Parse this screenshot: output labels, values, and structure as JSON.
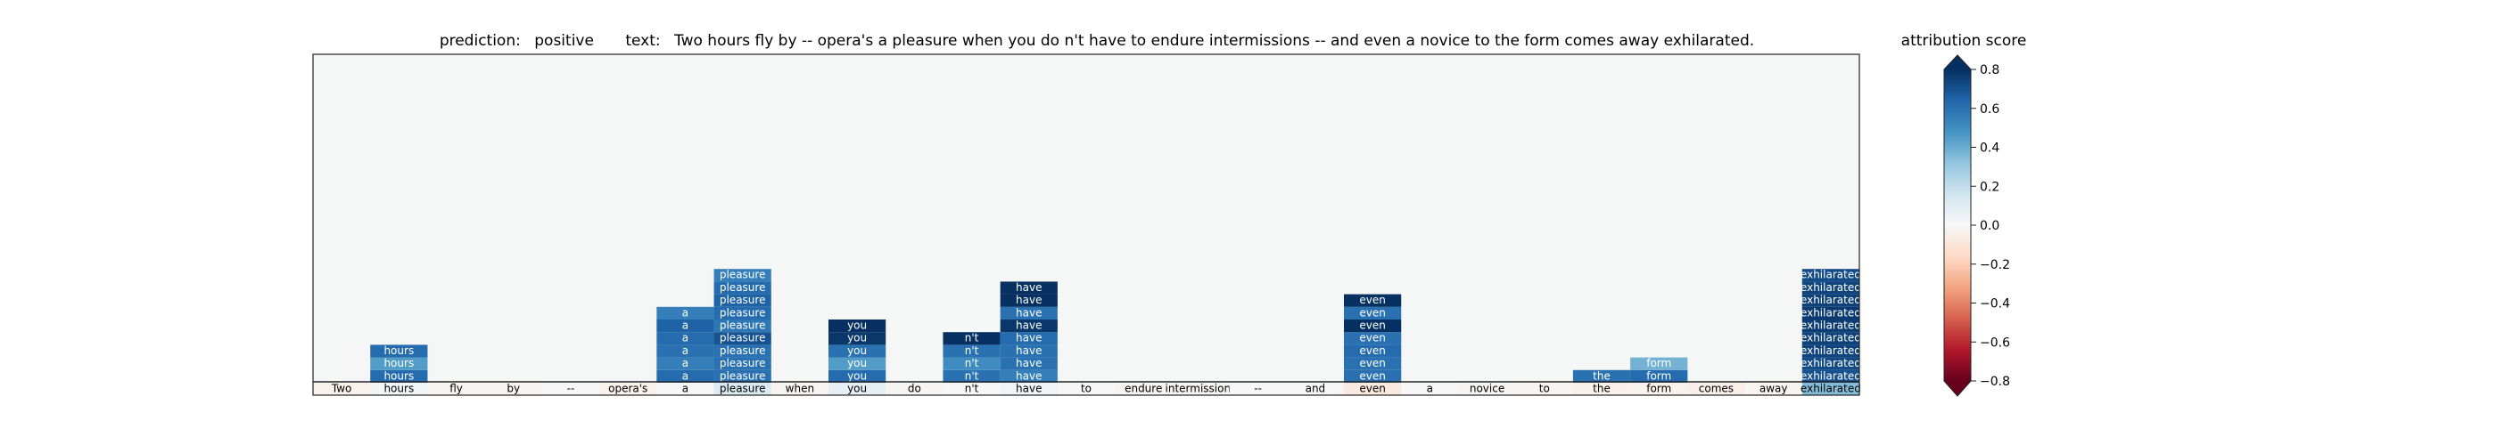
{
  "chart_data": {
    "type": "heatmap",
    "title": {
      "prediction_label": "prediction:",
      "prediction_value": "positive",
      "text_label": "text:",
      "text_value": "Two hours fly by -- opera's a pleasure when you do n't have to endure intermissions -- and even a novice to the form comes away exhilarated."
    },
    "tokens": [
      "Two",
      "hours",
      "fly",
      "by",
      "--",
      "opera's",
      "a",
      "pleasure",
      "when",
      "you",
      "do",
      "n't",
      "have",
      "to",
      "endure",
      "intermissions",
      "--",
      "and",
      "even",
      "a",
      "novice",
      "to",
      "the",
      "form",
      "comes",
      "away",
      "exhilarated"
    ],
    "baseline_scores": [
      -0.03,
      0.02,
      -0.02,
      -0.02,
      0.0,
      -0.03,
      0.0,
      0.12,
      -0.02,
      0.07,
      -0.01,
      0.0,
      0.03,
      0.0,
      -0.01,
      -0.01,
      0.0,
      0.0,
      -0.08,
      0.0,
      -0.01,
      -0.02,
      -0.04,
      -0.03,
      -0.05,
      -0.02,
      0.35
    ],
    "stacked_rows": [
      {
        "token": "hours",
        "scores": [
          0.62,
          0.45,
          0.62
        ]
      },
      {
        "token": "pleasure",
        "scores": [
          0.6,
          0.6,
          0.6,
          0.7,
          0.58,
          0.62,
          0.65,
          0.62,
          0.55
        ]
      },
      {
        "token": "you",
        "scores": [
          0.62,
          0.45,
          0.6,
          0.78,
          0.85
        ]
      },
      {
        "token": "n't",
        "scores": [
          0.6,
          0.5,
          0.6,
          0.82
        ]
      },
      {
        "token": "have",
        "scores": [
          0.55,
          0.6,
          0.6,
          0.62,
          0.78,
          0.6,
          0.85,
          0.88
        ]
      },
      {
        "token": "even",
        "scores": [
          0.6,
          0.6,
          0.62,
          0.6,
          0.8,
          0.6,
          0.85
        ]
      },
      {
        "token": "a",
        "scores": [
          0.62,
          0.55,
          0.6,
          0.62,
          0.65,
          0.55
        ]
      },
      {
        "token": "the",
        "scores": [
          0.6
        ]
      },
      {
        "token": "form",
        "scores": [
          0.62,
          0.38
        ]
      },
      {
        "token": "exhilarated",
        "scores": [
          0.7,
          0.72,
          0.74,
          0.75,
          0.76,
          0.77,
          0.75,
          0.74,
          0.72
        ]
      }
    ],
    "colorbar": {
      "label": "attribution score",
      "min": -0.8,
      "max": 0.8,
      "ticks": [
        0.8,
        0.6,
        0.4,
        0.2,
        0.0,
        -0.2,
        -0.4,
        -0.6,
        -0.8
      ],
      "tick_labels": [
        "0.8",
        "0.6",
        "0.4",
        "0.2",
        "0.0",
        "−0.2",
        "−0.4",
        "−0.6",
        "−0.8"
      ],
      "colormap": "RdBu",
      "extend": "both"
    },
    "colors": {
      "panel_background": "#f5f6f6",
      "positive_dark": "#053061",
      "negative_dark": "#67001f",
      "neutral": "#f7f7f7"
    }
  }
}
